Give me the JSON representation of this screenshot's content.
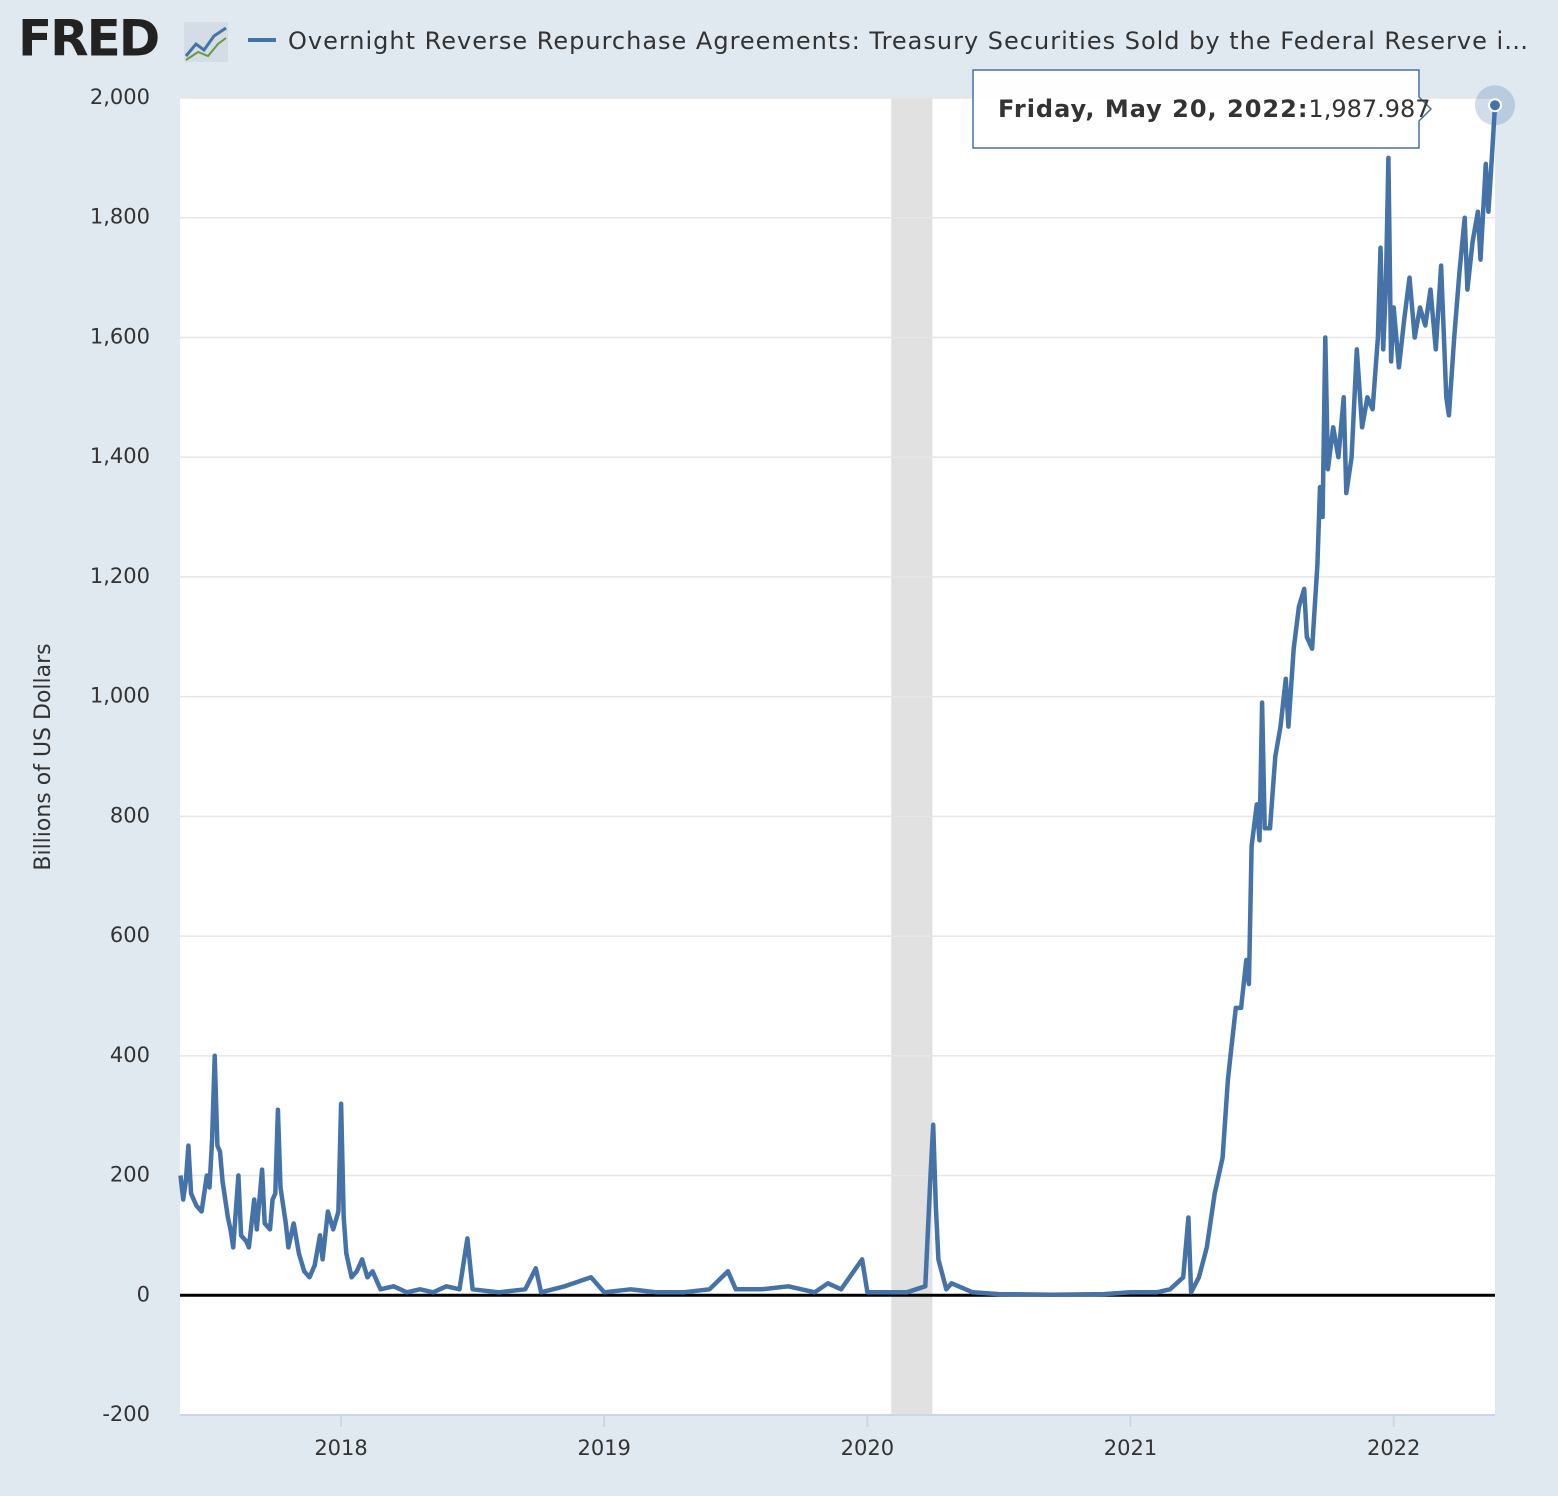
{
  "logo": "FRED",
  "chart_data": {
    "type": "line",
    "y_label": "Billions of US Dollars",
    "x": [
      2017.39,
      2017.4,
      2017.41,
      2017.42,
      2017.43,
      2017.45,
      2017.47,
      2017.49,
      2017.5,
      2017.51,
      2017.52,
      2017.53,
      2017.54,
      2017.55,
      2017.57,
      2017.58,
      2017.59,
      2017.61,
      2017.62,
      2017.64,
      2017.65,
      2017.67,
      2017.68,
      2017.7,
      2017.71,
      2017.73,
      2017.74,
      2017.75,
      2017.76,
      2017.77,
      2017.79,
      2017.8,
      2017.82,
      2017.84,
      2017.86,
      2017.88,
      2017.9,
      2017.92,
      2017.93,
      2017.95,
      2017.97,
      2017.99,
      2018.0,
      2018.01,
      2018.02,
      2018.04,
      2018.06,
      2018.08,
      2018.1,
      2018.12,
      2018.15,
      2018.2,
      2018.25,
      2018.3,
      2018.35,
      2018.4,
      2018.45,
      2018.48,
      2018.5,
      2018.6,
      2018.7,
      2018.74,
      2018.76,
      2018.85,
      2018.95,
      2019.0,
      2019.1,
      2019.2,
      2019.3,
      2019.4,
      2019.47,
      2019.5,
      2019.6,
      2019.7,
      2019.8,
      2019.85,
      2019.9,
      2019.98,
      2020.0,
      2020.1,
      2020.15,
      2020.22,
      2020.24,
      2020.25,
      2020.26,
      2020.27,
      2020.3,
      2020.32,
      2020.4,
      2020.5,
      2020.7,
      2020.9,
      2021.0,
      2021.1,
      2021.15,
      2021.2,
      2021.22,
      2021.23,
      2021.26,
      2021.29,
      2021.32,
      2021.35,
      2021.37,
      2021.38,
      2021.4,
      2021.42,
      2021.44,
      2021.45,
      2021.46,
      2021.48,
      2021.49,
      2021.5,
      2021.51,
      2021.53,
      2021.55,
      2021.57,
      2021.59,
      2021.6,
      2021.62,
      2021.64,
      2021.66,
      2021.67,
      2021.69,
      2021.71,
      2021.72,
      2021.73,
      2021.74,
      2021.75,
      2021.77,
      2021.79,
      2021.81,
      2021.82,
      2021.84,
      2021.86,
      2021.88,
      2021.9,
      2021.92,
      2021.94,
      2021.95,
      2021.96,
      2021.97,
      2021.98,
      2021.99,
      2022.0,
      2022.02,
      2022.04,
      2022.06,
      2022.08,
      2022.1,
      2022.12,
      2022.14,
      2022.16,
      2022.18,
      2022.2,
      2022.21,
      2022.23,
      2022.25,
      2022.27,
      2022.28,
      2022.3,
      2022.32,
      2022.33,
      2022.35,
      2022.36,
      2022.37,
      2022.385
    ],
    "series": [
      {
        "name": "Overnight Reverse Repurchase Agreements: Treasury Securities Sold by the Federal Reserve i…",
        "color": "#4572a7",
        "values": [
          200,
          160,
          190,
          250,
          170,
          150,
          140,
          200,
          180,
          260,
          400,
          250,
          240,
          190,
          130,
          110,
          80,
          200,
          100,
          90,
          80,
          160,
          110,
          210,
          120,
          110,
          160,
          170,
          310,
          180,
          120,
          80,
          120,
          70,
          40,
          30,
          50,
          100,
          60,
          140,
          110,
          140,
          320,
          130,
          70,
          30,
          40,
          60,
          30,
          40,
          10,
          15,
          5,
          10,
          5,
          15,
          10,
          95,
          10,
          5,
          10,
          45,
          5,
          15,
          30,
          5,
          10,
          5,
          5,
          10,
          40,
          10,
          10,
          15,
          5,
          20,
          10,
          60,
          5,
          5,
          5,
          15,
          200,
          285,
          150,
          60,
          10,
          20,
          5,
          2,
          1,
          2,
          5,
          5,
          10,
          30,
          130,
          5,
          30,
          80,
          170,
          230,
          360,
          400,
          480,
          480,
          560,
          520,
          750,
          820,
          760,
          990,
          780,
          780,
          900,
          950,
          1030,
          950,
          1080,
          1150,
          1180,
          1100,
          1080,
          1220,
          1350,
          1300,
          1600,
          1380,
          1450,
          1400,
          1500,
          1340,
          1400,
          1580,
          1450,
          1500,
          1480,
          1600,
          1750,
          1580,
          1680,
          1900,
          1560,
          1650,
          1550,
          1630,
          1700,
          1600,
          1650,
          1620,
          1680,
          1580,
          1720,
          1500,
          1470,
          1600,
          1710,
          1800,
          1680,
          1760,
          1810,
          1730,
          1890,
          1810,
          1880,
          1987.987
        ]
      }
    ],
    "recession": [
      2020.091,
      2020.247
    ],
    "tooltip": {
      "label": "Friday, May 20, 2022:",
      "value_label": "1,987.987"
    },
    "xlim": [
      2017.388,
      2022.385
    ],
    "xticks": [
      2018,
      2019,
      2020,
      2021,
      2022
    ],
    "ylim": [
      -200,
      2000
    ],
    "yticks": [
      -200,
      0,
      200,
      400,
      600,
      800,
      {
        "value": 1000,
        "label": "1,000"
      },
      {
        "value": 1200,
        "label": "1,200"
      },
      {
        "value": 1400,
        "label": "1,400"
      },
      {
        "value": 1600,
        "label": "1,600"
      },
      {
        "value": 1800,
        "label": "1,800"
      },
      {
        "value": 2000,
        "label": "2,000"
      }
    ],
    "grid": true
  }
}
